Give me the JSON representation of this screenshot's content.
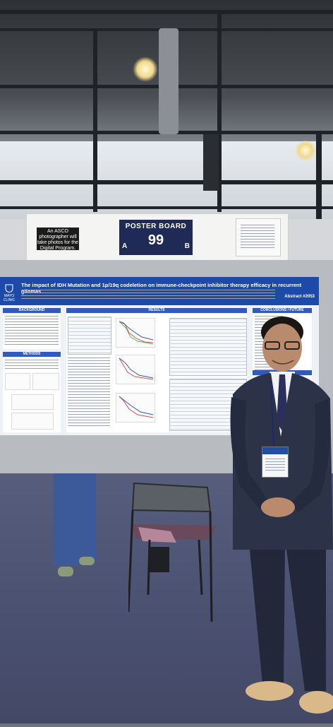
{
  "header_board": {
    "photo_note": "An ASCO photographer will take photos for the Digital Program.",
    "board_title": "POSTER BOARD",
    "board_number": "99",
    "side_left": "A",
    "side_right": "B"
  },
  "poster": {
    "logo_text": "MAYO CLINIC",
    "title": "The impact of IDH Mutation and 1p/19q codeletion on immune-checkpoint inhibitor therapy efficacy in recurrent gliomas",
    "abstract": "Abstract #2053",
    "sections": {
      "background": "BACKGROUND",
      "methods": "METHODS",
      "results": "RESULTS",
      "conclusions": "CONCLUSIONS / FUTURE DIRECTIONS"
    }
  },
  "colors": {
    "poster_header": "#1d4aa8",
    "board_sign": "#1f2a57",
    "carpet": "#4a5070",
    "suit": "#2c3348"
  },
  "icons": {
    "logo": "mayo-clinic-shield-icon"
  }
}
